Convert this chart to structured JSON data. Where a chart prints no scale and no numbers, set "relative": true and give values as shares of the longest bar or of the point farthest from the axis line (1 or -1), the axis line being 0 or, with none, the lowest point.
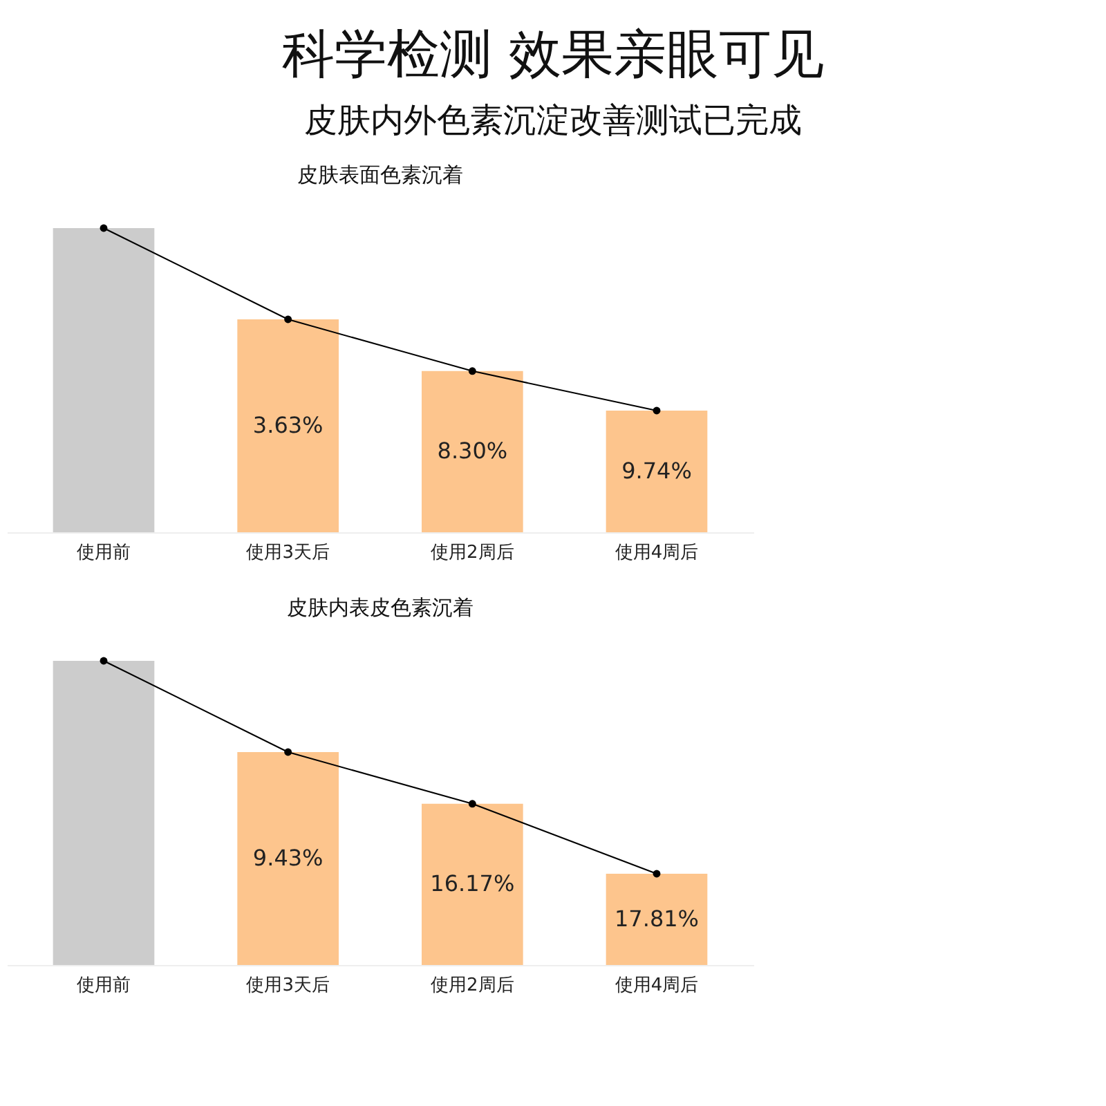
{
  "chart_data": [
    {
      "type": "other",
      "title": "科学检测 效果亲眼可见",
      "subtitle": "皮肤内外色素沉淀改善测试已完成"
    },
    {
      "type": "bar",
      "title": "皮肤表面色素沉着",
      "categories": [
        "使用前",
        "使用3天后",
        "使用2周后",
        "使用4周后"
      ],
      "relative": true,
      "marker": "circle",
      "series": [
        {
          "type": "bar",
          "colors": [
            "#cccccc",
            "#fdc58d",
            "#fdc58d",
            "#fdc58d"
          ],
          "values": [
            1,
            0.7,
            0.53,
            0.4
          ]
        },
        {
          "type": "line",
          "color": "#000000",
          "values": [
            1,
            0.7,
            0.53,
            0.4
          ]
        }
      ],
      "annotations": [
        "3.63%",
        "8.30%",
        "9.74%"
      ]
    },
    {
      "type": "bar",
      "title": "皮肤内表皮色素沉着",
      "categories": [
        "使用前",
        "使用3天后",
        "使用2周后",
        "使用4周后"
      ],
      "relative": true,
      "marker": "circle",
      "series": [
        {
          "type": "bar",
          "colors": [
            "#cccccc",
            "#fdc58d",
            "#fdc58d",
            "#fdc58d"
          ],
          "values": [
            1,
            0.7,
            0.53,
            0.3
          ]
        },
        {
          "type": "line",
          "color": "#000000",
          "values": [
            1,
            0.7,
            0.53,
            0.3
          ]
        }
      ],
      "annotations": [
        "9.43%",
        "16.17%",
        "17.81%"
      ]
    }
  ]
}
